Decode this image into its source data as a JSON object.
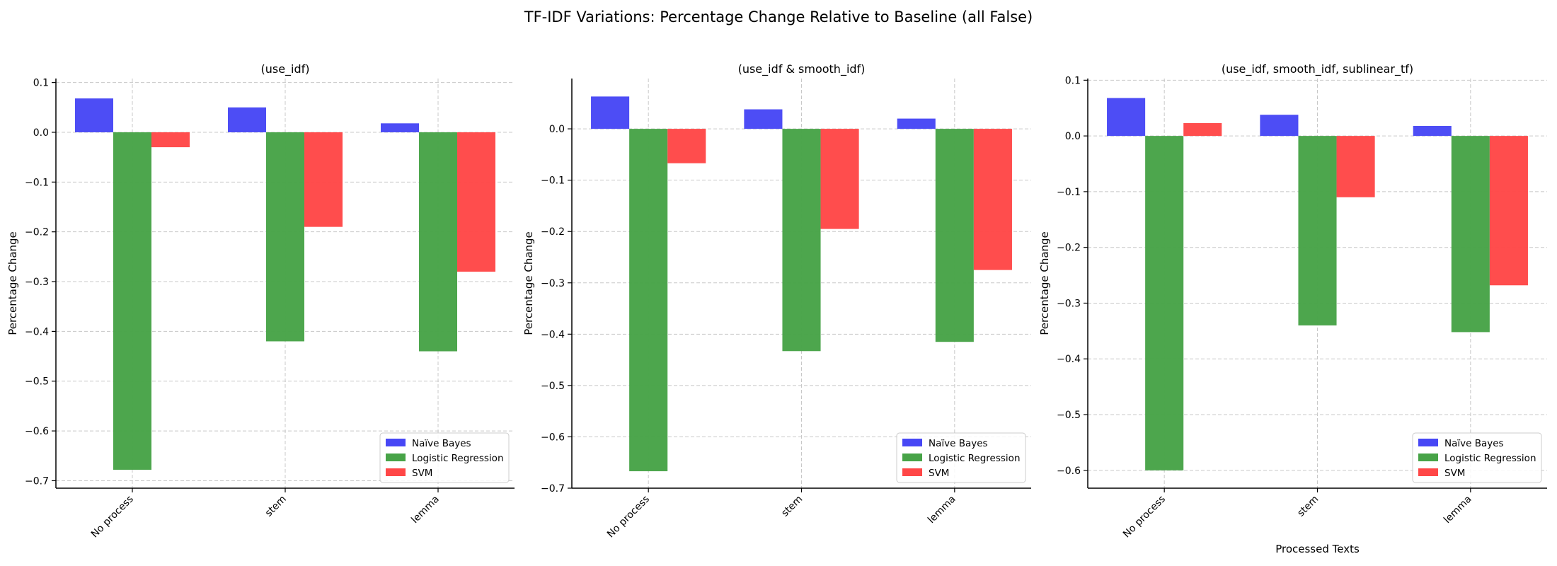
{
  "suptitle": "TF-IDF Variations: Percentage Change Relative to Baseline (all False)",
  "chart_data": [
    {
      "type": "bar",
      "title": "(use_idf)",
      "xlabel": "",
      "ylabel": "Percentage Change",
      "categories": [
        "No process",
        "stem",
        "lemma"
      ],
      "ylim": [
        -0.715,
        0.108
      ],
      "yticks": [
        "0.1",
        "0.0",
        "−0.1",
        "−0.2",
        "−0.3",
        "−0.4",
        "−0.5",
        "−0.6",
        "−0.7"
      ],
      "ytick_values": [
        0.1,
        0.0,
        -0.1,
        -0.2,
        -0.3,
        -0.4,
        -0.5,
        -0.6,
        -0.7
      ],
      "grid": true,
      "legend_position": "lower-right",
      "series": [
        {
          "name": "Naïve Bayes",
          "color": "#4747f5",
          "values": [
            0.068,
            0.05,
            0.018
          ]
        },
        {
          "name": "Logistic Regression",
          "color": "#47a347",
          "values": [
            -0.678,
            -0.42,
            -0.44
          ]
        },
        {
          "name": "SVM",
          "color": "#ff4747",
          "values": [
            -0.03,
            -0.19,
            -0.28
          ]
        }
      ]
    },
    {
      "type": "bar",
      "title": "(use_idf & smooth_idf)",
      "xlabel": "",
      "ylabel": "Percentage Change",
      "categories": [
        "No process",
        "stem",
        "lemma"
      ],
      "ylim": [
        -0.7,
        0.098
      ],
      "yticks": [
        "0.0",
        "−0.1",
        "−0.2",
        "−0.3",
        "−0.4",
        "−0.5",
        "−0.6",
        "−0.7"
      ],
      "ytick_values": [
        0.0,
        -0.1,
        -0.2,
        -0.3,
        -0.4,
        -0.5,
        -0.6,
        -0.7
      ],
      "grid": true,
      "legend_position": "lower-right",
      "series": [
        {
          "name": "Naïve Bayes",
          "color": "#4747f5",
          "values": [
            0.063,
            0.038,
            0.02
          ]
        },
        {
          "name": "Logistic Regression",
          "color": "#47a347",
          "values": [
            -0.667,
            -0.433,
            -0.415
          ]
        },
        {
          "name": "SVM",
          "color": "#ff4747",
          "values": [
            -0.067,
            -0.195,
            -0.275
          ]
        }
      ]
    },
    {
      "type": "bar",
      "title": "(use_idf, smooth_idf, sublinear_tf)",
      "xlabel": "Processed Texts",
      "ylabel": "Percentage Change",
      "categories": [
        "No process",
        "stem",
        "lemma"
      ],
      "ylim": [
        -0.632,
        0.103
      ],
      "yticks": [
        "0.1",
        "0.0",
        "−0.1",
        "−0.2",
        "−0.3",
        "−0.4",
        "−0.5",
        "−0.6"
      ],
      "ytick_values": [
        0.1,
        0.0,
        -0.1,
        -0.2,
        -0.3,
        -0.4,
        -0.5,
        -0.6
      ],
      "grid": true,
      "legend_position": "lower-right",
      "series": [
        {
          "name": "Naïve Bayes",
          "color": "#4747f5",
          "values": [
            0.068,
            0.038,
            0.018
          ]
        },
        {
          "name": "Logistic Regression",
          "color": "#47a347",
          "values": [
            -0.6,
            -0.34,
            -0.352
          ]
        },
        {
          "name": "SVM",
          "color": "#ff4747",
          "values": [
            0.023,
            -0.11,
            -0.268
          ]
        }
      ]
    }
  ]
}
